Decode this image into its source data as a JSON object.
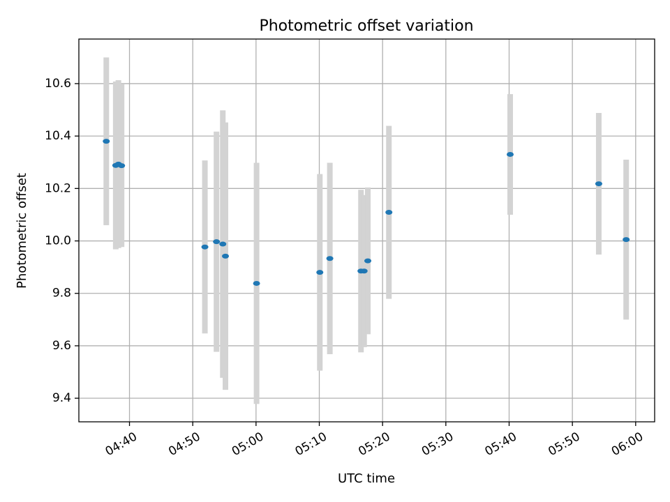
{
  "chart_data": {
    "type": "scatter",
    "title": "Photometric offset variation",
    "xlabel": "UTC time",
    "ylabel": "Photometric offset",
    "x_axis": {
      "type": "time",
      "range": [
        "04:32",
        "06:03"
      ],
      "ticks": [
        "04:40",
        "04:50",
        "05:00",
        "05:10",
        "05:20",
        "05:30",
        "05:40",
        "05:50",
        "06:00"
      ]
    },
    "y_axis": {
      "range": [
        9.31,
        10.77
      ],
      "ticks": [
        "9.4",
        "9.6",
        "9.8",
        "10.0",
        "10.2",
        "10.4",
        "10.6"
      ]
    },
    "grid": true,
    "colors": {
      "point": "#1f77b4",
      "errorbar": "#d3d3d3",
      "grid": "#b0b0b0"
    },
    "points": [
      {
        "x": "04:36:20",
        "y": 10.38,
        "err": 0.32
      },
      {
        "x": "04:37:50",
        "y": 10.288,
        "err": 0.32
      },
      {
        "x": "04:38:15",
        "y": 10.293,
        "err": 0.32
      },
      {
        "x": "04:38:45",
        "y": 10.287,
        "err": 0.31
      },
      {
        "x": "04:51:55",
        "y": 9.977,
        "err": 0.33
      },
      {
        "x": "04:53:45",
        "y": 9.997,
        "err": 0.42
      },
      {
        "x": "04:54:45",
        "y": 9.988,
        "err": 0.51
      },
      {
        "x": "04:55:10",
        "y": 9.942,
        "err": 0.51
      },
      {
        "x": "05:00:05",
        "y": 9.838,
        "err": 0.46
      },
      {
        "x": "05:10:05",
        "y": 9.88,
        "err": 0.375
      },
      {
        "x": "05:11:40",
        "y": 9.933,
        "err": 0.365
      },
      {
        "x": "05:16:35",
        "y": 9.885,
        "err": 0.31
      },
      {
        "x": "05:17:05",
        "y": 9.885,
        "err": 0.29
      },
      {
        "x": "05:17:40",
        "y": 9.924,
        "err": 0.28
      },
      {
        "x": "05:21:00",
        "y": 10.109,
        "err": 0.33
      },
      {
        "x": "05:40:10",
        "y": 10.33,
        "err": 0.23
      },
      {
        "x": "05:54:10",
        "y": 10.218,
        "err": 0.27
      },
      {
        "x": "05:58:30",
        "y": 10.005,
        "err": 0.305
      }
    ]
  }
}
